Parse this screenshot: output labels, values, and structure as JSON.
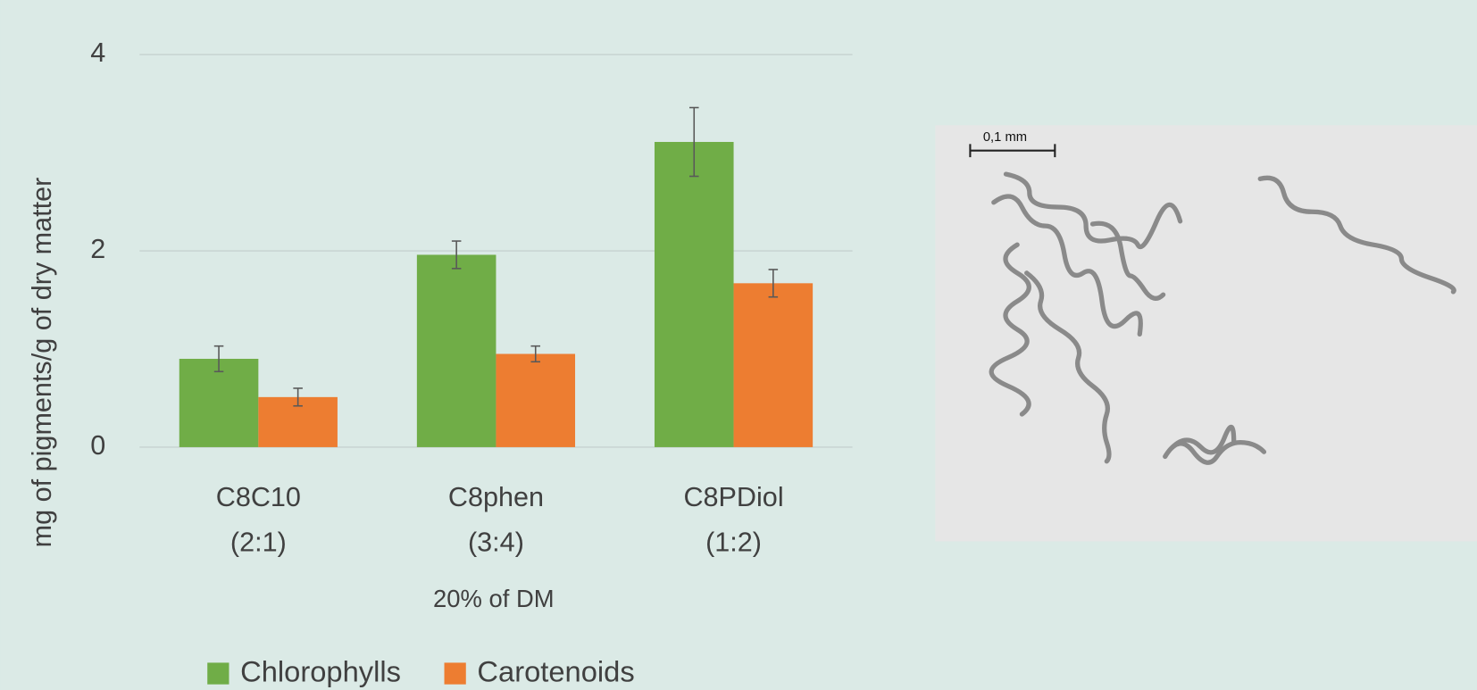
{
  "chart_data": {
    "type": "bar",
    "y_label": "mg of pigments/g of dry matter",
    "x_label": "20% of DM",
    "categories": [
      "C8C10 (2:1)",
      "C8phen (3:4)",
      "C8PDiol (1:2)"
    ],
    "series": [
      {
        "name": "Chlorophylls",
        "color": "#70ad47",
        "values": [
          0.9,
          1.96,
          3.11
        ],
        "errors": [
          0.13,
          0.14,
          0.35
        ]
      },
      {
        "name": "Carotenoids",
        "color": "#ed7d31",
        "values": [
          0.51,
          0.95,
          1.67
        ],
        "errors": [
          0.09,
          0.08,
          0.14
        ]
      }
    ],
    "ylim": [
      0,
      4
    ],
    "yticks": [
      0,
      2,
      4
    ],
    "grid": true,
    "legend": "bottom"
  },
  "figure": {
    "scale_label": "0,1 mm"
  }
}
